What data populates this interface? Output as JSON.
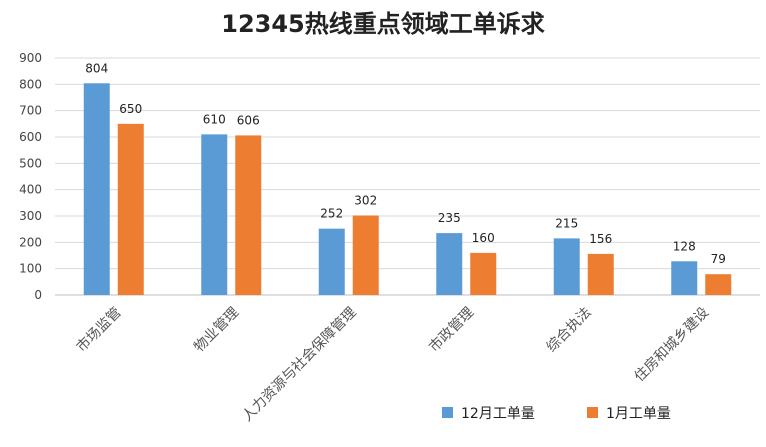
{
  "chart_data": {
    "type": "bar",
    "title": "12345热线重点领域工单诉求",
    "xlabel": "",
    "ylabel": "",
    "ylim": [
      0,
      900
    ],
    "yticks": [
      0,
      100,
      200,
      300,
      400,
      500,
      600,
      700,
      800,
      900
    ],
    "grid": true,
    "legend_position": "bottom-right",
    "categories": [
      "市场监管",
      "物业管理",
      "人力资源与社会保障管理",
      "市政管理",
      "综合执法",
      "住房和城乡建设"
    ],
    "series": [
      {
        "name": "12月工单量",
        "color": "#5b9bd5",
        "values": [
          804,
          610,
          252,
          235,
          215,
          128
        ]
      },
      {
        "name": "1月工单量",
        "color": "#ed7d31",
        "values": [
          650,
          606,
          302,
          160,
          156,
          79
        ]
      }
    ]
  }
}
